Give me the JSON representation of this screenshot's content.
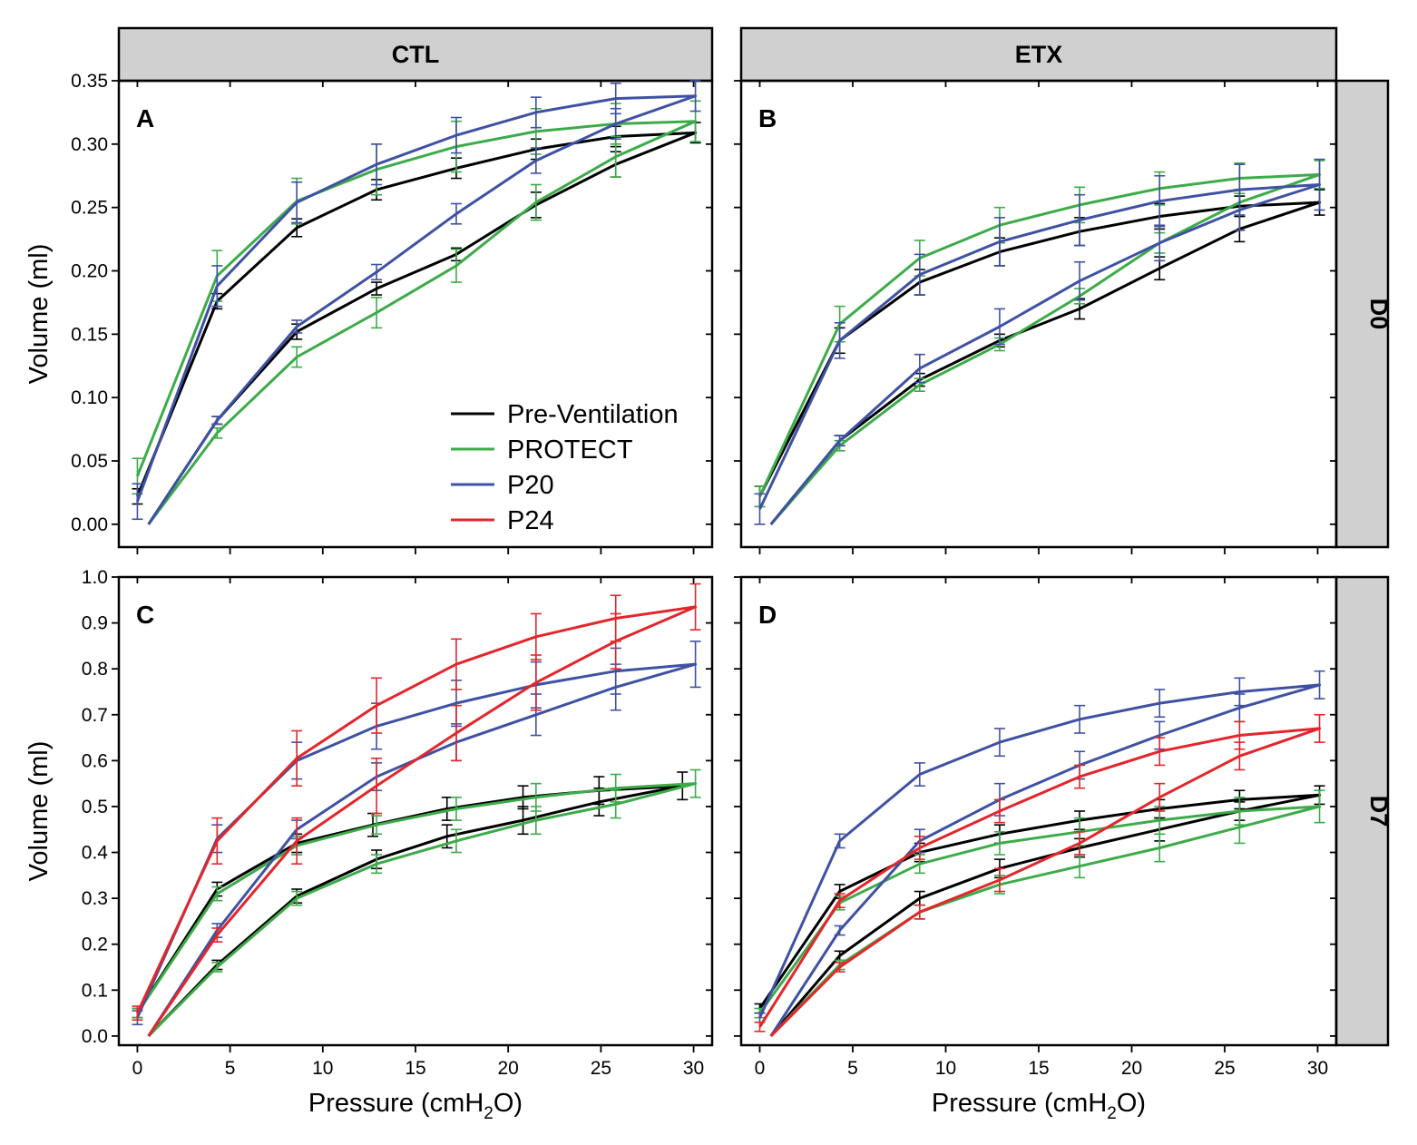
{
  "figure": {
    "column_strips": [
      "CTL",
      "ETX"
    ],
    "row_strips": [
      "D0",
      "D7"
    ],
    "xlabel_main": "Pressure (cmH",
    "xlabel_sub": "2",
    "xlabel_end": "O)",
    "ylabel": "Volume (ml)"
  },
  "legend": [
    {
      "name": "Pre-Ventilation",
      "color": "#000000"
    },
    {
      "name": "PROTECT",
      "color": "#3dab49"
    },
    {
      "name": "P20",
      "color": "#3f51a3"
    },
    {
      "name": "P24",
      "color": "#e3262b"
    }
  ],
  "chart_data": [
    {
      "panel": "A",
      "type": "line",
      "column": "CTL",
      "row": "D0",
      "xlabel": "Pressure (cmH2O)",
      "ylabel": "Volume (ml)",
      "xlim": [
        -1,
        31
      ],
      "ylim": [
        -0.018,
        0.35
      ],
      "xticks": [
        0,
        5,
        10,
        15,
        20,
        25,
        30
      ],
      "yticks": [
        0.0,
        0.05,
        0.1,
        0.15,
        0.2,
        0.25,
        0.3,
        0.35
      ],
      "ytick_labels": [
        "0.00",
        "0.05",
        "0.10",
        "0.15",
        "0.20",
        "0.25",
        "0.30",
        "0.35"
      ],
      "show_xtick_labels": false,
      "show_legend": true,
      "series": [
        {
          "name": "Pre-Ventilation",
          "color": "#000000",
          "x": [
            0.6,
            4.3,
            8.6,
            12.9,
            17.2,
            21.5,
            25.8,
            30.1,
            25.8,
            21.5,
            17.2,
            12.9,
            8.6,
            4.3,
            0
          ],
          "y": [
            0,
            0.082,
            0.152,
            0.186,
            0.213,
            0.252,
            0.284,
            0.309,
            0.306,
            0.296,
            0.281,
            0.264,
            0.234,
            0.176,
            0.022
          ],
          "err": [
            0,
            0.003,
            0.006,
            0.005,
            0.005,
            0.01,
            0.01,
            0.008,
            0.008,
            0.008,
            0.008,
            0.008,
            0.007,
            0.006,
            0.006
          ]
        },
        {
          "name": "PROTECT",
          "color": "#3dab49",
          "x": [
            0.6,
            4.3,
            8.6,
            12.9,
            17.2,
            21.5,
            25.8,
            30.1,
            25.8,
            21.5,
            17.2,
            12.9,
            8.6,
            4.3,
            0
          ],
          "y": [
            0,
            0.072,
            0.132,
            0.167,
            0.204,
            0.254,
            0.29,
            0.318,
            0.316,
            0.31,
            0.298,
            0.28,
            0.255,
            0.196,
            0.038
          ],
          "err": [
            0,
            0.004,
            0.008,
            0.012,
            0.013,
            0.014,
            0.016,
            0.016,
            0.016,
            0.018,
            0.02,
            0.02,
            0.018,
            0.02,
            0.014
          ]
        },
        {
          "name": "P20",
          "color": "#3f51a3",
          "x": [
            0.6,
            4.3,
            8.6,
            12.9,
            17.2,
            21.5,
            25.8,
            30.1,
            25.8,
            21.5,
            17.2,
            12.9,
            8.6,
            4.3,
            0
          ],
          "y": [
            0,
            0.082,
            0.156,
            0.199,
            0.245,
            0.287,
            0.316,
            0.338,
            0.336,
            0.325,
            0.307,
            0.284,
            0.254,
            0.188,
            0.018
          ],
          "err": [
            0,
            0.003,
            0.005,
            0.006,
            0.008,
            0.01,
            0.012,
            0.012,
            0.012,
            0.012,
            0.014,
            0.016,
            0.016,
            0.016,
            0.014
          ]
        },
        {
          "name": "P24",
          "color": "#e3262b",
          "x": [],
          "y": [],
          "err": []
        }
      ]
    },
    {
      "panel": "B",
      "type": "line",
      "column": "ETX",
      "row": "D0",
      "xlabel": "Pressure (cmH2O)",
      "ylabel": "Volume (ml)",
      "xlim": [
        -1,
        31
      ],
      "ylim": [
        -0.018,
        0.35
      ],
      "xticks": [
        0,
        5,
        10,
        15,
        20,
        25,
        30
      ],
      "yticks": [
        0.0,
        0.05,
        0.1,
        0.15,
        0.2,
        0.25,
        0.3,
        0.35
      ],
      "ytick_labels": [],
      "show_xtick_labels": false,
      "show_legend": false,
      "series": [
        {
          "name": "Pre-Ventilation",
          "color": "#000000",
          "x": [
            0.6,
            4.3,
            8.6,
            12.9,
            17.2,
            21.5,
            25.8,
            30.1,
            25.8,
            21.5,
            17.2,
            12.9,
            8.6,
            4.3,
            0
          ],
          "y": [
            0,
            0.066,
            0.114,
            0.145,
            0.17,
            0.202,
            0.233,
            0.254,
            0.251,
            0.243,
            0.231,
            0.215,
            0.191,
            0.145,
            0.022
          ],
          "err": [
            0,
            0.004,
            0.005,
            0.005,
            0.008,
            0.009,
            0.01,
            0.01,
            0.008,
            0.01,
            0.011,
            0.011,
            0.01,
            0.01,
            0.008
          ]
        },
        {
          "name": "PROTECT",
          "color": "#3dab49",
          "x": [
            0.6,
            4.3,
            8.6,
            12.9,
            17.2,
            21.5,
            25.8,
            30.1,
            25.8,
            21.5,
            17.2,
            12.9,
            8.6,
            4.3,
            0
          ],
          "y": [
            0,
            0.062,
            0.11,
            0.142,
            0.18,
            0.222,
            0.254,
            0.276,
            0.273,
            0.265,
            0.252,
            0.236,
            0.21,
            0.158,
            0.022
          ],
          "err": [
            0,
            0.004,
            0.005,
            0.005,
            0.006,
            0.008,
            0.01,
            0.011,
            0.012,
            0.013,
            0.014,
            0.014,
            0.014,
            0.014,
            0.008
          ]
        },
        {
          "name": "P20",
          "color": "#3f51a3",
          "x": [
            0.6,
            4.3,
            8.6,
            12.9,
            17.2,
            21.5,
            25.8,
            30.1,
            25.8,
            21.5,
            17.2,
            12.9,
            8.6,
            4.3,
            0
          ],
          "y": [
            0,
            0.066,
            0.123,
            0.156,
            0.192,
            0.222,
            0.248,
            0.268,
            0.264,
            0.255,
            0.24,
            0.223,
            0.197,
            0.145,
            0.012
          ],
          "err": [
            0,
            0.004,
            0.011,
            0.014,
            0.015,
            0.014,
            0.016,
            0.02,
            0.02,
            0.02,
            0.02,
            0.019,
            0.016,
            0.014,
            0.012
          ]
        },
        {
          "name": "P24",
          "color": "#e3262b",
          "x": [],
          "y": [],
          "err": []
        }
      ]
    },
    {
      "panel": "C",
      "type": "line",
      "column": "CTL",
      "row": "D7",
      "xlabel": "Pressure (cmH2O)",
      "ylabel": "Volume (ml)",
      "xlim": [
        -1,
        31
      ],
      "ylim": [
        -0.02,
        1.0
      ],
      "xticks": [
        0,
        5,
        10,
        15,
        20,
        25,
        30
      ],
      "yticks": [
        0.0,
        0.1,
        0.2,
        0.3,
        0.4,
        0.5,
        0.6,
        0.7,
        0.8,
        0.9,
        1.0
      ],
      "ytick_labels": [
        "0.0",
        "0.1",
        "0.2",
        "0.3",
        "0.4",
        "0.5",
        "0.6",
        "0.7",
        "0.8",
        "0.9",
        "1.0"
      ],
      "show_xtick_labels": true,
      "show_legend": false,
      "series": [
        {
          "name": "Pre-Ventilation",
          "color": "#000000",
          "x": [
            0.6,
            4.3,
            8.6,
            12.9,
            16.7,
            20.8,
            24.9,
            29.4,
            24.9,
            20.8,
            16.7,
            12.7,
            8.6,
            4.3,
            0
          ],
          "y": [
            0,
            0.155,
            0.305,
            0.385,
            0.435,
            0.47,
            0.51,
            0.545,
            0.535,
            0.52,
            0.495,
            0.46,
            0.42,
            0.32,
            0.05
          ],
          "err": [
            0,
            0.01,
            0.015,
            0.02,
            0.025,
            0.03,
            0.03,
            0.03,
            0.03,
            0.025,
            0.025,
            0.025,
            0.02,
            0.015,
            0.01
          ]
        },
        {
          "name": "PROTECT",
          "color": "#3dab49",
          "x": [
            0.6,
            4.3,
            8.6,
            12.9,
            17.2,
            21.5,
            25.8,
            30.1,
            25.8,
            21.5,
            17.2,
            12.9,
            8.6,
            4.3,
            0
          ],
          "y": [
            0,
            0.15,
            0.3,
            0.375,
            0.425,
            0.47,
            0.505,
            0.55,
            0.54,
            0.52,
            0.495,
            0.46,
            0.415,
            0.31,
            0.05
          ],
          "err": [
            0,
            0.01,
            0.015,
            0.02,
            0.025,
            0.03,
            0.03,
            0.03,
            0.03,
            0.03,
            0.025,
            0.02,
            0.02,
            0.015,
            0.01
          ]
        },
        {
          "name": "P20",
          "color": "#3f51a3",
          "x": [
            0.6,
            4.3,
            8.6,
            12.9,
            17.2,
            21.5,
            25.8,
            30.1,
            25.8,
            21.5,
            17.2,
            12.9,
            8.6,
            4.3,
            0
          ],
          "y": [
            0,
            0.23,
            0.45,
            0.565,
            0.64,
            0.7,
            0.76,
            0.81,
            0.795,
            0.765,
            0.725,
            0.675,
            0.6,
            0.43,
            0.04
          ],
          "err": [
            0,
            0.015,
            0.02,
            0.03,
            0.04,
            0.045,
            0.05,
            0.05,
            0.05,
            0.05,
            0.05,
            0.05,
            0.04,
            0.03,
            0.015
          ]
        },
        {
          "name": "P24",
          "color": "#e3262b",
          "x": [
            0.6,
            4.3,
            8.6,
            12.9,
            17.2,
            21.5,
            25.8,
            30.1,
            25.8,
            21.5,
            17.2,
            12.9,
            8.6,
            4.3,
            0
          ],
          "y": [
            0,
            0.22,
            0.425,
            0.545,
            0.66,
            0.77,
            0.86,
            0.935,
            0.91,
            0.87,
            0.81,
            0.72,
            0.605,
            0.425,
            0.05
          ],
          "err": [
            0,
            0.015,
            0.05,
            0.06,
            0.06,
            0.06,
            0.06,
            0.05,
            0.05,
            0.05,
            0.055,
            0.06,
            0.06,
            0.05,
            0.015
          ]
        }
      ]
    },
    {
      "panel": "D",
      "type": "line",
      "column": "ETX",
      "row": "D7",
      "xlabel": "Pressure (cmH2O)",
      "ylabel": "Volume (ml)",
      "xlim": [
        -1,
        31
      ],
      "ylim": [
        -0.02,
        1.0
      ],
      "xticks": [
        0,
        5,
        10,
        15,
        20,
        25,
        30
      ],
      "yticks": [
        0.0,
        0.1,
        0.2,
        0.3,
        0.4,
        0.5,
        0.6,
        0.7,
        0.8,
        0.9,
        1.0
      ],
      "ytick_labels": [],
      "show_xtick_labels": true,
      "show_legend": false,
      "series": [
        {
          "name": "Pre-Ventilation",
          "color": "#000000",
          "x": [
            0.6,
            4.3,
            8.6,
            12.9,
            17.2,
            21.5,
            25.8,
            30.1,
            25.8,
            21.5,
            17.2,
            12.9,
            8.6,
            4.3,
            0
          ],
          "y": [
            0,
            0.175,
            0.3,
            0.365,
            0.41,
            0.45,
            0.49,
            0.525,
            0.515,
            0.495,
            0.47,
            0.44,
            0.4,
            0.315,
            0.06
          ],
          "err": [
            0,
            0.01,
            0.015,
            0.02,
            0.02,
            0.025,
            0.02,
            0.02,
            0.02,
            0.02,
            0.02,
            0.02,
            0.02,
            0.015,
            0.01
          ]
        },
        {
          "name": "PROTECT",
          "color": "#3dab49",
          "x": [
            0.6,
            4.3,
            8.6,
            12.9,
            17.2,
            21.5,
            25.8,
            30.1,
            25.8,
            21.5,
            17.2,
            12.9,
            8.6,
            4.3,
            0
          ],
          "y": [
            0,
            0.155,
            0.27,
            0.33,
            0.37,
            0.41,
            0.455,
            0.5,
            0.49,
            0.47,
            0.445,
            0.42,
            0.375,
            0.29,
            0.05
          ],
          "err": [
            0,
            0.01,
            0.015,
            0.02,
            0.025,
            0.03,
            0.035,
            0.035,
            0.03,
            0.03,
            0.03,
            0.025,
            0.02,
            0.015,
            0.01
          ]
        },
        {
          "name": "P20",
          "color": "#3f51a3",
          "x": [
            0.6,
            4.3,
            8.6,
            12.9,
            17.2,
            21.5,
            25.8,
            30.1,
            25.8,
            21.5,
            17.2,
            12.9,
            8.6,
            4.3,
            0
          ],
          "y": [
            0,
            0.23,
            0.425,
            0.515,
            0.59,
            0.655,
            0.715,
            0.765,
            0.75,
            0.725,
            0.69,
            0.64,
            0.57,
            0.425,
            0.04
          ],
          "err": [
            0,
            0.01,
            0.025,
            0.035,
            0.03,
            0.03,
            0.03,
            0.03,
            0.03,
            0.03,
            0.03,
            0.03,
            0.025,
            0.015,
            0.01
          ]
        },
        {
          "name": "P24",
          "color": "#e3262b",
          "x": [
            0.6,
            4.3,
            8.6,
            12.9,
            17.2,
            21.5,
            25.8,
            30.1,
            25.8,
            21.5,
            17.2,
            12.9,
            8.6,
            4.3,
            0
          ],
          "y": [
            0,
            0.15,
            0.27,
            0.34,
            0.42,
            0.52,
            0.61,
            0.67,
            0.655,
            0.62,
            0.565,
            0.49,
            0.41,
            0.295,
            0.02
          ],
          "err": [
            0,
            0.01,
            0.015,
            0.025,
            0.025,
            0.03,
            0.03,
            0.03,
            0.03,
            0.03,
            0.025,
            0.025,
            0.025,
            0.015,
            0.01
          ]
        }
      ]
    }
  ]
}
